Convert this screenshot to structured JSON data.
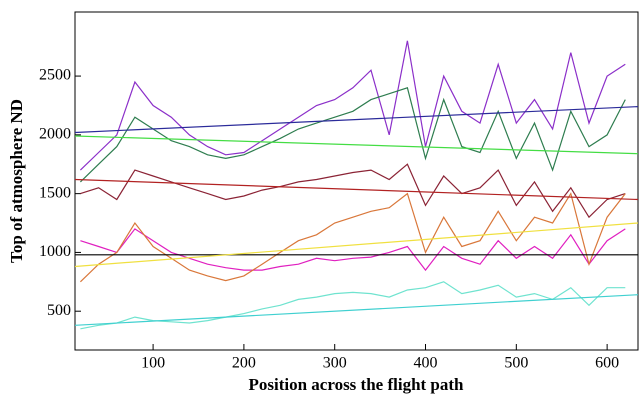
{
  "chart_data": {
    "type": "line",
    "x_label": "Position across the flight path",
    "y_label": "Top of atmosphere ND",
    "xlim": [
      14,
      634
    ],
    "ylim": [
      170,
      3045
    ],
    "xticks": [
      100,
      200,
      300,
      400,
      500,
      600
    ],
    "yticks": [
      500,
      1000,
      1500,
      2000,
      2500
    ],
    "x": [
      20,
      40,
      60,
      80,
      100,
      120,
      140,
      160,
      180,
      200,
      220,
      240,
      260,
      280,
      300,
      320,
      340,
      360,
      380,
      400,
      420,
      440,
      460,
      480,
      500,
      520,
      540,
      560,
      580,
      600,
      620
    ],
    "series": [
      {
        "color": "#8b2fc9",
        "values": [
          1700,
          1850,
          2000,
          2450,
          2250,
          2150,
          2000,
          1900,
          1830,
          1850,
          1950,
          2050,
          2150,
          2250,
          2300,
          2400,
          2550,
          2000,
          2800,
          1900,
          2500,
          2200,
          2100,
          2600,
          2100,
          2300,
          2050,
          2700,
          2100,
          2500,
          2600
        ]
      },
      {
        "color": "#2e7d4f",
        "values": [
          1600,
          1750,
          1900,
          2150,
          2050,
          1950,
          1900,
          1830,
          1800,
          1830,
          1900,
          1970,
          2050,
          2100,
          2150,
          2200,
          2300,
          2350,
          2400,
          1800,
          2300,
          1900,
          1850,
          2200,
          1800,
          2100,
          1700,
          2200,
          1900,
          2000,
          2300
        ]
      },
      {
        "color": "#8b2335",
        "values": [
          1500,
          1550,
          1450,
          1700,
          1650,
          1600,
          1550,
          1500,
          1450,
          1480,
          1530,
          1560,
          1600,
          1620,
          1650,
          1680,
          1700,
          1620,
          1750,
          1400,
          1650,
          1500,
          1550,
          1700,
          1400,
          1600,
          1350,
          1550,
          1300,
          1450,
          1500
        ]
      },
      {
        "color": "#e020c0",
        "values": [
          1100,
          1050,
          1000,
          1200,
          1100,
          1000,
          950,
          900,
          870,
          850,
          850,
          880,
          900,
          950,
          930,
          950,
          960,
          1000,
          1050,
          850,
          1050,
          950,
          900,
          1100,
          950,
          1050,
          950,
          1150,
          900,
          1100,
          1200
        ]
      },
      {
        "color": "#d9773a",
        "values": [
          750,
          900,
          1000,
          1250,
          1050,
          950,
          850,
          800,
          760,
          800,
          900,
          1000,
          1100,
          1150,
          1250,
          1300,
          1350,
          1380,
          1500,
          1000,
          1300,
          1050,
          1100,
          1350,
          1100,
          1300,
          1250,
          1500,
          900,
          1300,
          1500
        ]
      },
      {
        "color": "#6fe3cf",
        "values": [
          350,
          380,
          400,
          450,
          420,
          410,
          400,
          420,
          450,
          480,
          520,
          550,
          600,
          620,
          650,
          660,
          650,
          620,
          680,
          700,
          750,
          650,
          680,
          720,
          620,
          650,
          600,
          700,
          550,
          700,
          700
        ]
      },
      {
        "color": "#2b2b9a",
        "x": [
          14,
          634
        ],
        "values": [
          2020,
          2240
        ]
      },
      {
        "color": "#44dd44",
        "x": [
          14,
          634
        ],
        "values": [
          1990,
          1840
        ]
      },
      {
        "color": "#b22222",
        "x": [
          14,
          634
        ],
        "values": [
          1620,
          1450
        ]
      },
      {
        "color": "#000000",
        "x": [
          14,
          634
        ],
        "values": [
          980,
          980
        ]
      },
      {
        "color": "#f0e040",
        "x": [
          14,
          634
        ],
        "values": [
          880,
          1250
        ]
      },
      {
        "color": "#40d0d0",
        "x": [
          14,
          634
        ],
        "values": [
          380,
          640
        ]
      }
    ]
  }
}
